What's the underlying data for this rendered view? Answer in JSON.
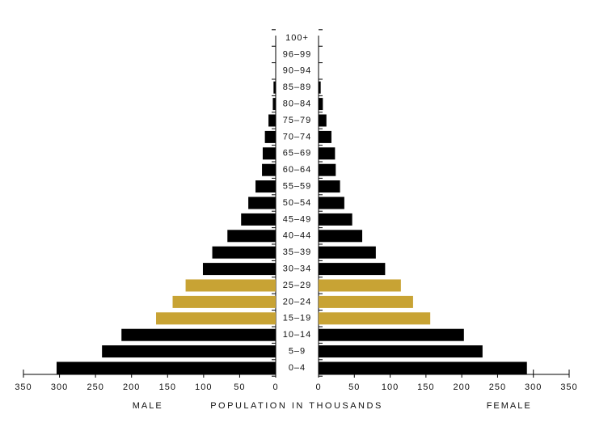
{
  "chart_data": {
    "type": "pyramid",
    "categories": [
      "0–4",
      "5–9",
      "10–14",
      "15–19",
      "20–24",
      "25–29",
      "30–34",
      "35–39",
      "40–44",
      "45–49",
      "50–54",
      "55–59",
      "60–64",
      "65–69",
      "70–74",
      "75–79",
      "80–84",
      "85–89",
      "90–94",
      "96–99",
      "100+"
    ],
    "series": [
      {
        "name": "MALE",
        "side": "left",
        "color": "#000000",
        "values": [
          304,
          241,
          214,
          166,
          143,
          125,
          101,
          88,
          67,
          48,
          38,
          28,
          19,
          18,
          15,
          10,
          4,
          3,
          0,
          0,
          0
        ]
      },
      {
        "name": "FEMALE",
        "side": "right",
        "color": "#000000",
        "values": [
          291,
          229,
          203,
          156,
          132,
          115,
          93,
          80,
          61,
          47,
          36,
          30,
          24,
          23,
          18,
          11,
          6,
          3,
          0,
          0,
          0
        ]
      }
    ],
    "highlight_categories": [
      "15–19",
      "20–24",
      "25–29"
    ],
    "highlight_color": "#c8a334",
    "xlabel": "POPULATION IN THOUSANDS",
    "xlim": [
      0,
      350
    ],
    "xticks": [
      0,
      50,
      100,
      150,
      200,
      250,
      300,
      350
    ]
  }
}
